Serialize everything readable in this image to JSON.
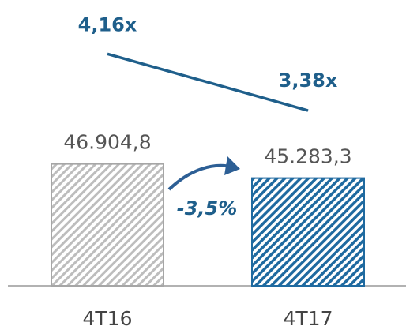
{
  "chart_data": {
    "type": "bar",
    "categories": [
      "4T16",
      "4T17"
    ],
    "values": [
      46904.8,
      45283.3
    ],
    "value_labels": [
      "46.904,8",
      "45.283,3"
    ],
    "colors": [
      "#a6a6a6",
      "#1f6aa0"
    ],
    "ylim": [
      33000,
      47500
    ],
    "line": {
      "type": "line",
      "values": [
        4.16,
        3.38
      ],
      "value_labels": [
        "4,16x",
        "3,38x"
      ],
      "color": "#1f5f8b",
      "axis": "y2"
    },
    "y2lim": [
      3,
      4.5
    ],
    "annotation": "-3,5%"
  }
}
